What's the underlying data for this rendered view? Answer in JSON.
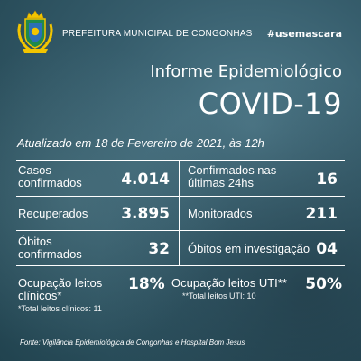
{
  "header": {
    "prefecture": "PREFEITURA MUNICIPAL DE CONGONHAS",
    "hashtag": "#usemascara"
  },
  "title": {
    "line1": "Informe Epidemiológico",
    "line2": "COVID-19"
  },
  "updated": "Atualizado em 18 de Fevereiro de 2021, às 12h",
  "stats": {
    "cases": {
      "label1": "Casos",
      "label2": "confirmados",
      "value": "4.014"
    },
    "last24": {
      "label1": "Confirmados nas",
      "label2": "últimas 24hs",
      "value": "16"
    },
    "recovered": {
      "label": "Recuperados",
      "value": "3.895"
    },
    "monitored": {
      "label": "Monitorados",
      "value": "211"
    },
    "deaths": {
      "label1": "Óbitos",
      "label2": "confirmados",
      "value": "32"
    },
    "investigating": {
      "label": "Óbitos em investigação",
      "value": "04"
    }
  },
  "occupancy": {
    "clinical": {
      "label1": "Ocupação leitos",
      "label2": "clínicos*",
      "value": "18%",
      "note": "*Total leitos clínicos: 11"
    },
    "icu": {
      "label": "Ocupação leitos UTI**",
      "value": "50%",
      "note": "**Total leitos UTI: 10"
    }
  },
  "footer": "Fonte: Vigilância Epidemiológica de Congonhas e Hospital Bom Jesus",
  "colors": {
    "crest_gold": "#f2c500",
    "crest_green": "#1f8a4c",
    "crest_blue": "#2b6fb6"
  }
}
